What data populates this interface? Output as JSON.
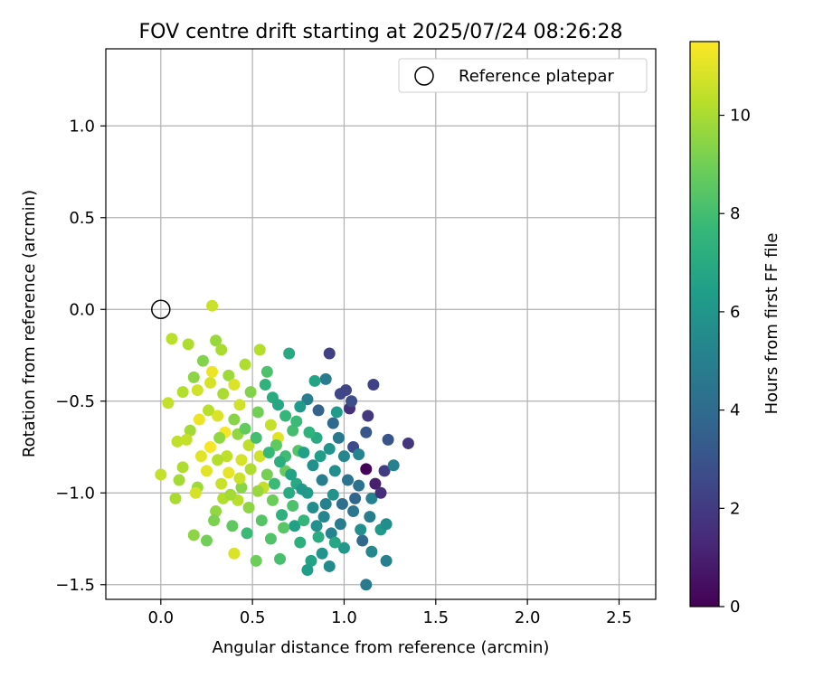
{
  "chart_data": {
    "type": "scatter",
    "title": "FOV centre drift starting at 2025/07/24 08:26:28",
    "xlabel": "Angular distance from reference (arcmin)",
    "ylabel": "Rotation from reference (arcmin)",
    "xlim": [
      -0.3,
      2.7
    ],
    "ylim": [
      -1.58,
      1.42
    ],
    "xticks": [
      0.0,
      0.5,
      1.0,
      1.5,
      2.0,
      2.5
    ],
    "xtick_labels": [
      "0.0",
      "0.5",
      "1.0",
      "1.5",
      "2.0",
      "2.5"
    ],
    "yticks": [
      1.0,
      0.5,
      0.0,
      -0.5,
      -1.0,
      -1.5
    ],
    "ytick_labels": [
      "1.0",
      "0.5",
      "0.0",
      "−0.5",
      "−1.0",
      "−1.5"
    ],
    "grid": true,
    "legend": {
      "position": "upper-right",
      "label": "Reference platepar",
      "marker": "open-circle"
    },
    "reference_point": {
      "x": 0.0,
      "y": 0.0
    },
    "colorbar": {
      "label": "Hours from first FF file",
      "range": [
        0,
        11.5
      ],
      "ticks": [
        0,
        2,
        4,
        6,
        8,
        10
      ],
      "tick_labels": [
        "0",
        "2",
        "4",
        "6",
        "8",
        "10"
      ],
      "colormap": "viridis",
      "colors": [
        "#440154",
        "#482878",
        "#3e4989",
        "#31688e",
        "#26828e",
        "#1f9e89",
        "#35b779",
        "#6ece58",
        "#b5de2b",
        "#fde725"
      ]
    },
    "series": [
      {
        "points": [
          [
            0.28,
            0.02,
            10.6
          ],
          [
            0.0,
            -0.9,
            10.5
          ],
          [
            0.06,
            -0.16,
            10.3
          ],
          [
            0.15,
            -0.19,
            10.1
          ],
          [
            0.09,
            -0.72,
            10.4
          ],
          [
            0.18,
            -1.23,
            9.5
          ],
          [
            0.25,
            -1.26,
            9.0
          ],
          [
            0.4,
            -1.33,
            10.9
          ],
          [
            0.08,
            -1.03,
            10.0
          ],
          [
            0.54,
            -0.22,
            10.2
          ],
          [
            0.37,
            -0.36,
            9.8
          ],
          [
            0.27,
            -0.4,
            10.8
          ],
          [
            0.31,
            -0.58,
            10.9
          ],
          [
            0.21,
            -0.6,
            11.2
          ],
          [
            0.35,
            -0.67,
            11.3
          ],
          [
            0.43,
            -0.52,
            10.7
          ],
          [
            0.48,
            -0.74,
            10.4
          ],
          [
            0.25,
            -0.88,
            11.0
          ],
          [
            0.33,
            -0.95,
            10.6
          ],
          [
            0.2,
            -0.97,
            9.8
          ],
          [
            0.3,
            -0.17,
            9.7
          ],
          [
            0.33,
            -0.22,
            10.0
          ],
          [
            0.23,
            -0.28,
            9.3
          ],
          [
            0.12,
            -0.45,
            10.2
          ],
          [
            0.04,
            -0.51,
            10.5
          ],
          [
            0.16,
            -0.66,
            9.9
          ],
          [
            0.12,
            -0.86,
            10.1
          ],
          [
            0.19,
            -1.0,
            10.8
          ],
          [
            0.3,
            -1.1,
            9.6
          ],
          [
            0.42,
            -1.04,
            10.3
          ],
          [
            0.56,
            -0.97,
            10.5
          ],
          [
            0.54,
            -0.8,
            10.7
          ],
          [
            0.6,
            -0.63,
            10.5
          ],
          [
            0.64,
            -0.7,
            11.0
          ],
          [
            0.49,
            -0.45,
            9.3
          ],
          [
            0.4,
            -0.41,
            10.9
          ],
          [
            0.46,
            -0.3,
            10.1
          ],
          [
            0.37,
            -0.89,
            11.1
          ],
          [
            0.44,
            -0.82,
            10.8
          ],
          [
            0.27,
            -0.75,
            11.4
          ],
          [
            0.22,
            -0.8,
            11.0
          ],
          [
            0.14,
            -0.71,
            10.5
          ],
          [
            0.1,
            -0.93,
            9.9
          ],
          [
            0.34,
            -1.03,
            10.2
          ],
          [
            0.48,
            -1.08,
            9.5
          ],
          [
            0.52,
            -1.37,
            8.9
          ],
          [
            0.39,
            -1.18,
            8.6
          ],
          [
            0.29,
            -1.15,
            9.2
          ],
          [
            0.42,
            -0.68,
            9.6
          ],
          [
            0.53,
            -0.56,
            9.0
          ],
          [
            0.58,
            -0.34,
            8.2
          ],
          [
            0.57,
            -0.41,
            7.4
          ],
          [
            0.61,
            -0.48,
            7.1
          ],
          [
            0.64,
            -0.52,
            6.8
          ],
          [
            0.7,
            -0.24,
            6.9
          ],
          [
            0.68,
            -0.58,
            7.6
          ],
          [
            0.72,
            -0.66,
            8.0
          ],
          [
            0.75,
            -0.77,
            8.4
          ],
          [
            0.68,
            -0.88,
            8.8
          ],
          [
            0.62,
            -0.95,
            7.8
          ],
          [
            0.7,
            -1.0,
            7.0
          ],
          [
            0.66,
            -1.12,
            7.3
          ],
          [
            0.73,
            -1.18,
            6.5
          ],
          [
            0.6,
            -1.25,
            8.3
          ],
          [
            0.65,
            -1.36,
            8.1
          ],
          [
            0.76,
            -1.27,
            7.2
          ],
          [
            0.82,
            -1.37,
            6.6
          ],
          [
            0.8,
            -1.42,
            6.4
          ],
          [
            0.88,
            -1.33,
            6.0
          ],
          [
            0.92,
            -1.4,
            5.5
          ],
          [
            0.85,
            -1.18,
            5.8
          ],
          [
            0.93,
            -1.22,
            5.2
          ],
          [
            0.98,
            -1.17,
            4.8
          ],
          [
            1.05,
            -1.1,
            4.5
          ],
          [
            1.1,
            -1.26,
            4.0
          ],
          [
            1.12,
            -1.5,
            4.7
          ],
          [
            1.15,
            -1.32,
            5.4
          ],
          [
            1.2,
            -1.2,
            6.2
          ],
          [
            1.23,
            -1.37,
            5.0
          ],
          [
            1.23,
            -1.17,
            5.6
          ],
          [
            1.15,
            -1.03,
            5.1
          ],
          [
            1.08,
            -0.96,
            4.3
          ],
          [
            1.12,
            -0.87,
            0.1
          ],
          [
            1.17,
            -0.95,
            1.0
          ],
          [
            1.22,
            -0.88,
            2.1
          ],
          [
            1.24,
            -0.71,
            3.0
          ],
          [
            1.27,
            -0.85,
            5.0
          ],
          [
            1.35,
            -0.73,
            1.8
          ],
          [
            1.2,
            -1.0,
            1.5
          ],
          [
            1.05,
            -0.75,
            2.6
          ],
          [
            1.12,
            -0.67,
            3.1
          ],
          [
            1.13,
            -0.58,
            1.9
          ],
          [
            1.16,
            -0.41,
            2.3
          ],
          [
            1.03,
            -0.54,
            1.6
          ],
          [
            0.98,
            -0.46,
            2.5
          ],
          [
            1.01,
            -0.44,
            2.4
          ],
          [
            1.04,
            -0.5,
            2.8
          ],
          [
            0.92,
            -0.24,
            2.2
          ],
          [
            0.9,
            -0.38,
            4.8
          ],
          [
            0.84,
            -0.39,
            6.7
          ],
          [
            0.8,
            -0.49,
            4.9
          ],
          [
            0.76,
            -0.53,
            6.2
          ],
          [
            0.86,
            -0.55,
            3.6
          ],
          [
            0.94,
            -0.62,
            3.9
          ],
          [
            0.97,
            -0.7,
            4.6
          ],
          [
            1.0,
            -0.8,
            5.3
          ],
          [
            0.95,
            -0.88,
            5.7
          ],
          [
            0.88,
            -0.93,
            4.9
          ],
          [
            0.83,
            -0.85,
            5.8
          ],
          [
            0.78,
            -0.78,
            6.5
          ],
          [
            0.85,
            -0.7,
            7.0
          ],
          [
            0.92,
            -0.76,
            6.0
          ],
          [
            1.02,
            -0.93,
            4.4
          ],
          [
            1.06,
            -1.03,
            3.8
          ],
          [
            0.99,
            -1.06,
            4.2
          ],
          [
            0.9,
            -1.06,
            5.0
          ],
          [
            0.8,
            -1.0,
            6.3
          ],
          [
            0.74,
            -0.95,
            6.9
          ],
          [
            0.68,
            -0.8,
            7.9
          ],
          [
            0.63,
            -0.74,
            8.6
          ],
          [
            0.58,
            -0.9,
            9.1
          ],
          [
            0.55,
            -1.15,
            8.4
          ],
          [
            0.47,
            -1.22,
            7.8
          ],
          [
            0.44,
            -0.97,
            9.4
          ],
          [
            0.36,
            -0.8,
            10.4
          ],
          [
            0.32,
            -0.7,
            9.6
          ],
          [
            0.26,
            -0.55,
            10.3
          ],
          [
            0.2,
            -0.44,
            10.7
          ],
          [
            0.18,
            -0.37,
            9.5
          ],
          [
            0.28,
            -0.34,
            11.2
          ],
          [
            0.34,
            -0.46,
            10.0
          ],
          [
            0.4,
            -0.6,
            9.4
          ],
          [
            0.46,
            -0.65,
            8.7
          ],
          [
            0.52,
            -0.7,
            8.0
          ],
          [
            0.59,
            -0.78,
            7.7
          ],
          [
            0.65,
            -0.83,
            7.2
          ],
          [
            0.71,
            -0.9,
            6.6
          ],
          [
            0.77,
            -0.98,
            6.1
          ],
          [
            0.83,
            -1.08,
            5.6
          ],
          [
            0.89,
            -1.13,
            5.3
          ],
          [
            0.94,
            -1.01,
            5.9
          ],
          [
            0.87,
            -0.8,
            6.4
          ],
          [
            0.81,
            -0.67,
            7.4
          ],
          [
            0.74,
            -0.61,
            7.8
          ],
          [
            0.96,
            -0.56,
            6.3
          ],
          [
            1.08,
            -0.79,
            5.2
          ],
          [
            1.14,
            -1.13,
            4.9
          ],
          [
            1.09,
            -1.2,
            5.7
          ],
          [
            1.0,
            -1.3,
            6.1
          ],
          [
            0.95,
            -1.27,
            6.8
          ],
          [
            0.86,
            -1.24,
            7.1
          ],
          [
            0.78,
            -1.15,
            7.5
          ],
          [
            0.72,
            -1.07,
            8.2
          ],
          [
            0.67,
            -1.19,
            8.5
          ],
          [
            0.61,
            -1.04,
            8.9
          ],
          [
            0.53,
            -0.99,
            9.7
          ],
          [
            0.49,
            -0.87,
            10.1
          ],
          [
            0.43,
            -0.92,
            10.6
          ],
          [
            0.38,
            -1.01,
            9.9
          ],
          [
            0.31,
            -0.82,
            10.2
          ]
        ]
      }
    ]
  }
}
